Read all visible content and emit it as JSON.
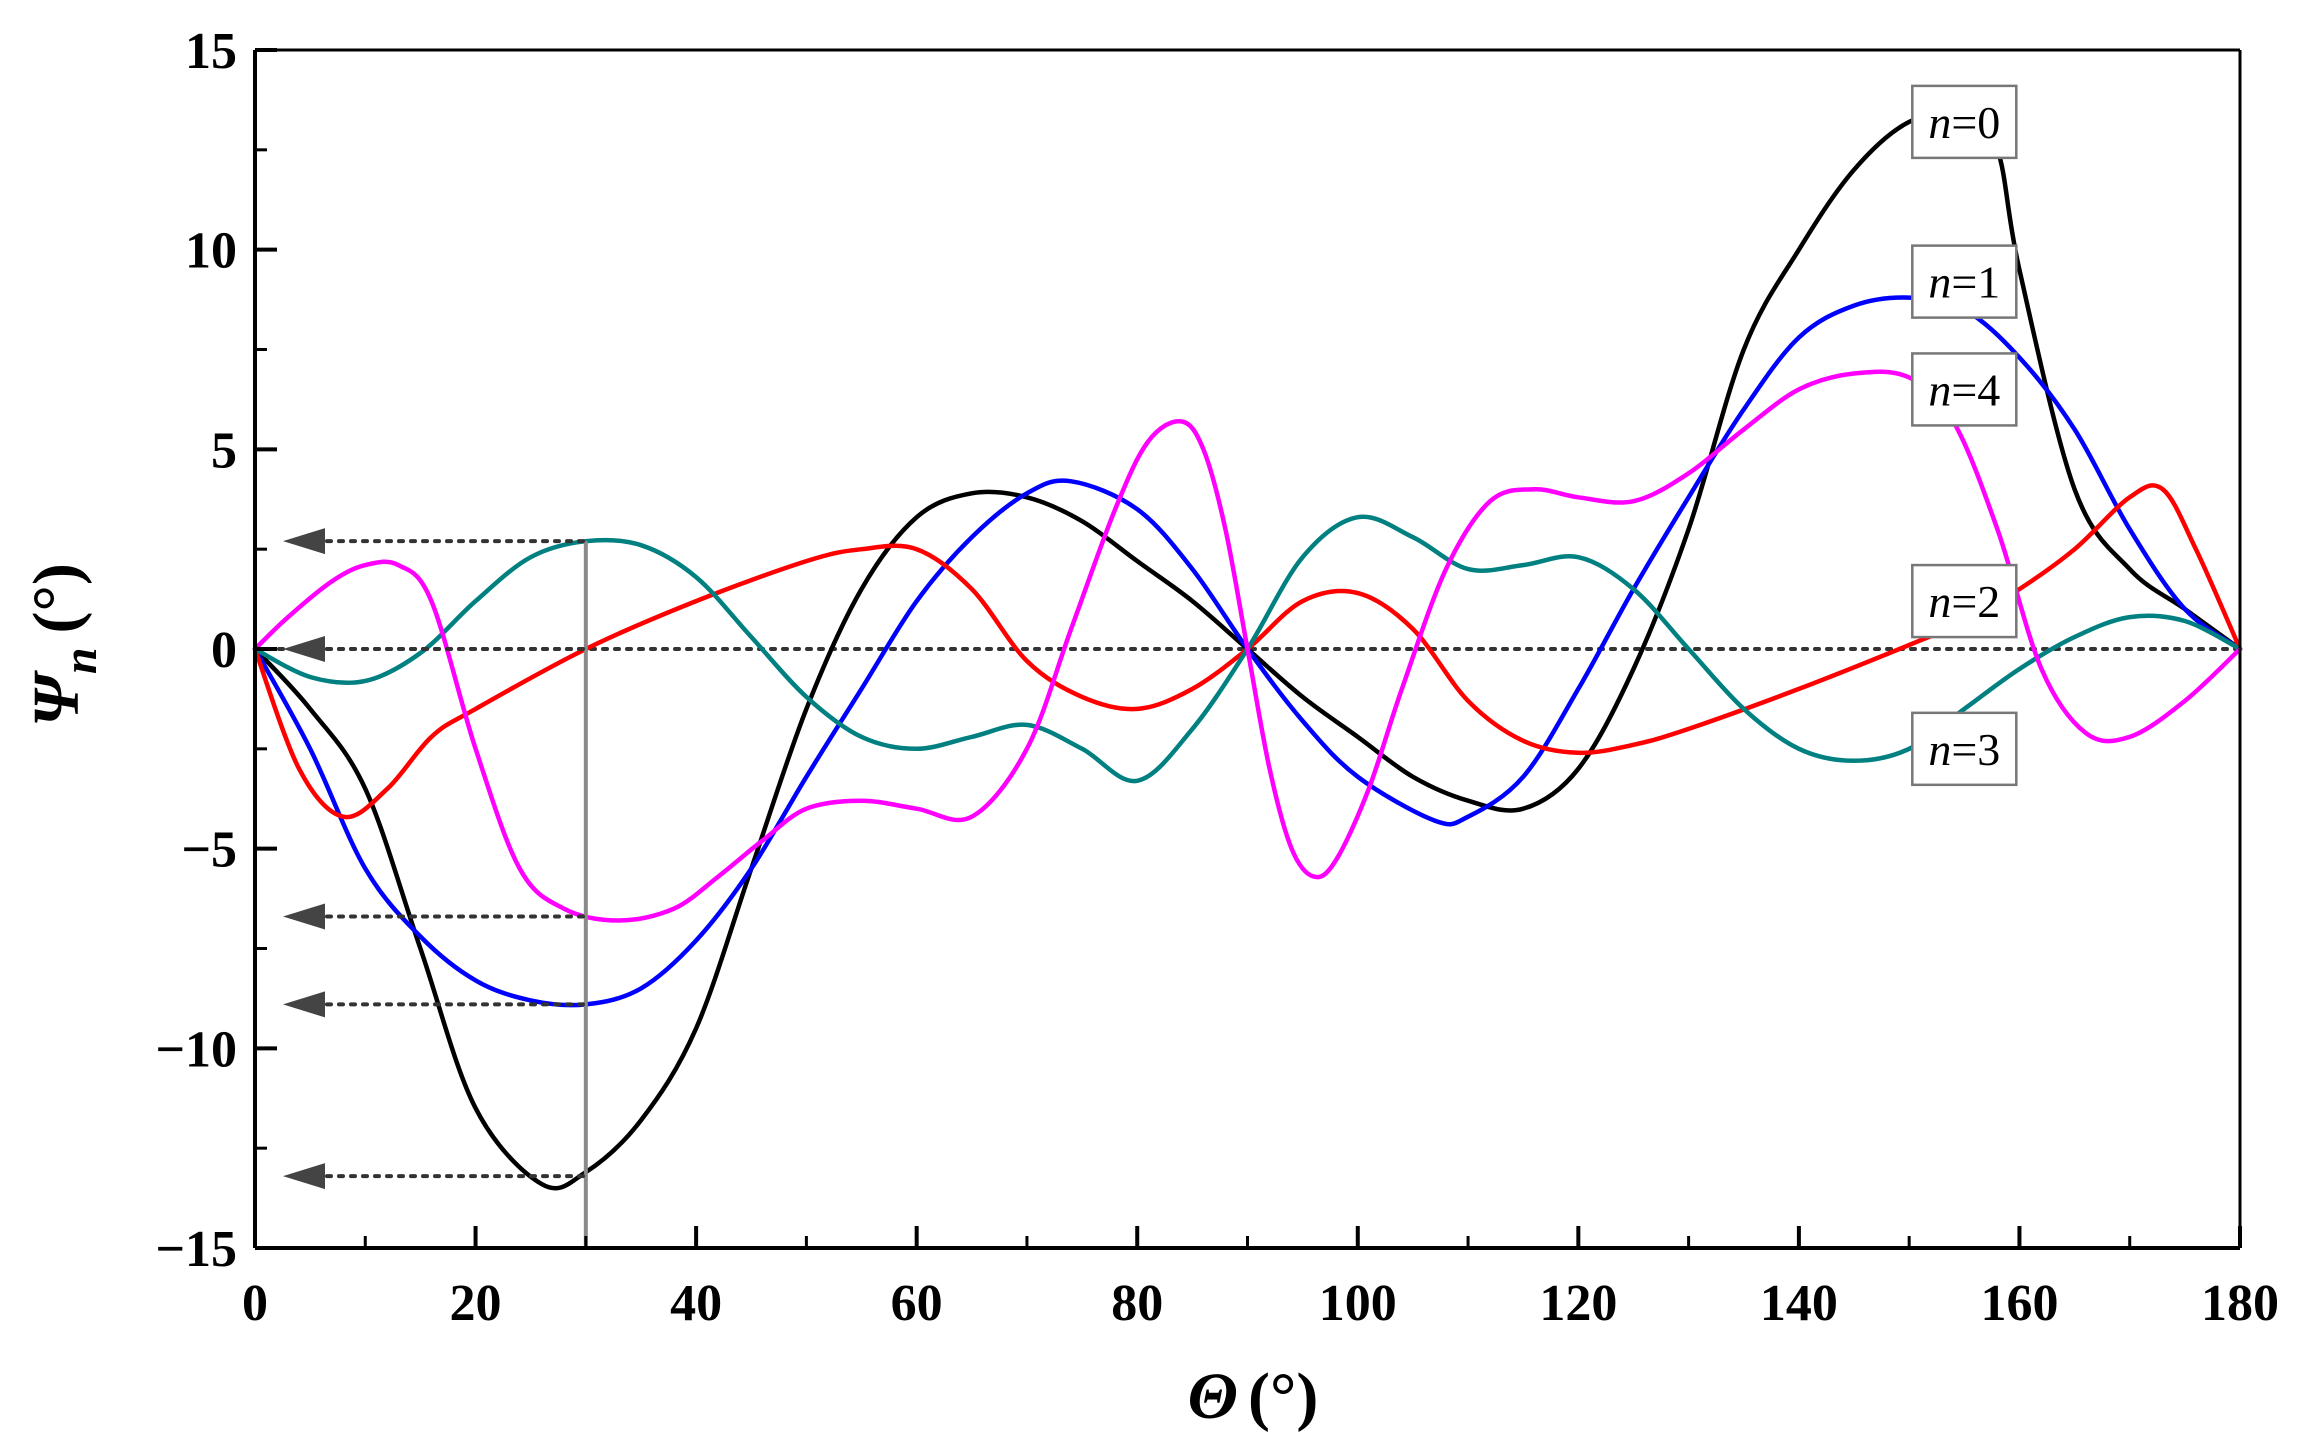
{
  "chart_data": {
    "type": "line",
    "xlabel": {
      "symbol": "Θ",
      "unit": "(°)"
    },
    "ylabel": {
      "symbol": "Ψ",
      "subscript": "n",
      "unit": "(°)"
    },
    "xlim": [
      0,
      180
    ],
    "ylim": [
      -15,
      15
    ],
    "xticks": [
      0,
      20,
      40,
      60,
      80,
      100,
      120,
      140,
      160,
      180
    ],
    "yticks": [
      -15,
      -10,
      -5,
      0,
      5,
      10,
      15
    ],
    "xtick_labels": [
      "0",
      "20",
      "40",
      "60",
      "80",
      "100",
      "120",
      "140",
      "160",
      "180"
    ],
    "ytick_labels": [
      "−15",
      "−10",
      "−5",
      "0",
      "5",
      "10",
      "15"
    ],
    "series": [
      {
        "name": "n=0",
        "label_var": "n",
        "label_val": "=0",
        "color": "#000000",
        "x": [
          0,
          5,
          10,
          15,
          20,
          26,
          30,
          35,
          40,
          45,
          50,
          55,
          60,
          65,
          70,
          75,
          80,
          85,
          90,
          95,
          100,
          105,
          110,
          115,
          120,
          125,
          130,
          135,
          140,
          145,
          150,
          155,
          158,
          160,
          165,
          170,
          175,
          180
        ],
        "y": [
          0,
          -1.5,
          -3.5,
          -7.5,
          -11.5,
          -13.4,
          -13.1,
          -11.8,
          -9.5,
          -5.5,
          -1.5,
          1.5,
          3.3,
          3.9,
          3.8,
          3.2,
          2.2,
          1.2,
          0,
          -1.2,
          -2.2,
          -3.2,
          -3.8,
          -4.0,
          -3.0,
          -0.5,
          3.0,
          7.5,
          10.0,
          12.0,
          13.2,
          13.4,
          12.5,
          9.5,
          4.0,
          2.0,
          1.0,
          0
        ]
      },
      {
        "name": "n=1",
        "label_var": "n",
        "label_val": "=1",
        "color": "#0000ff",
        "x": [
          0,
          5,
          10,
          15,
          20,
          25,
          30,
          35,
          40,
          45,
          50,
          55,
          60,
          65,
          70,
          74,
          80,
          85,
          90,
          95,
          100,
          107,
          110,
          115,
          120,
          125,
          130,
          135,
          140,
          145,
          150,
          155,
          160,
          165,
          170,
          175,
          180
        ],
        "y": [
          0,
          -2.5,
          -5.5,
          -7.2,
          -8.3,
          -8.8,
          -8.9,
          -8.5,
          -7.3,
          -5.5,
          -3.2,
          -1.0,
          1.2,
          2.8,
          3.9,
          4.2,
          3.5,
          2.0,
          0,
          -1.8,
          -3.2,
          -4.3,
          -4.2,
          -3.2,
          -1.0,
          1.5,
          3.8,
          6.0,
          7.8,
          8.6,
          8.8,
          8.5,
          7.3,
          5.5,
          3.0,
          1.0,
          0
        ]
      },
      {
        "name": "n=2",
        "label_var": "n",
        "label_val": "=2",
        "color": "#ff0000",
        "x": [
          0,
          4,
          8,
          12,
          16,
          20,
          30,
          40,
          50,
          55,
          60,
          65,
          70,
          75,
          80,
          85,
          90,
          95,
          100,
          105,
          110,
          115,
          120,
          125,
          130,
          140,
          150,
          155,
          160,
          165,
          170,
          173,
          176,
          180
        ],
        "y": [
          0,
          -3.0,
          -4.2,
          -3.5,
          -2.2,
          -1.5,
          0,
          1.2,
          2.2,
          2.5,
          2.5,
          1.5,
          -0.3,
          -1.2,
          -1.5,
          -1.0,
          0,
          1.2,
          1.4,
          0.5,
          -1.3,
          -2.3,
          -2.6,
          -2.4,
          -2.0,
          -1.0,
          0.1,
          0.7,
          1.5,
          2.5,
          3.8,
          4.0,
          2.5,
          0
        ]
      },
      {
        "name": "n=3",
        "label_var": "n",
        "label_val": "=3",
        "color": "#008080",
        "x": [
          0,
          5,
          10,
          15,
          20,
          25,
          30,
          35,
          40,
          45,
          50,
          55,
          60,
          65,
          70,
          75,
          80,
          85,
          90,
          95,
          100,
          105,
          110,
          115,
          120,
          125,
          130,
          135,
          140,
          145,
          150,
          155,
          160,
          165,
          170,
          175,
          180
        ],
        "y": [
          0,
          -0.7,
          -0.8,
          -0.1,
          1.2,
          2.3,
          2.7,
          2.6,
          1.8,
          0.3,
          -1.2,
          -2.2,
          -2.5,
          -2.2,
          -1.9,
          -2.5,
          -3.3,
          -2.0,
          0,
          2.3,
          3.3,
          2.8,
          2.0,
          2.1,
          2.3,
          1.5,
          0,
          -1.5,
          -2.5,
          -2.8,
          -2.5,
          -1.5,
          -0.5,
          0.3,
          0.8,
          0.7,
          0
        ]
      },
      {
        "name": "n=4",
        "label_var": "n",
        "label_val": "=4",
        "color": "#ff00ff",
        "x": [
          0,
          3,
          7,
          10,
          13,
          16,
          20,
          24,
          28,
          33,
          38,
          42,
          46,
          50,
          55,
          60,
          65,
          70,
          74,
          78,
          81,
          84,
          86,
          88,
          90,
          92,
          94,
          96,
          98,
          101,
          104,
          108,
          112,
          116,
          120,
          125,
          130,
          135,
          140,
          145,
          150,
          154,
          158,
          162,
          166,
          170,
          175,
          180
        ],
        "y": [
          0,
          0.8,
          1.7,
          2.1,
          2.1,
          1.2,
          -2.5,
          -5.5,
          -6.5,
          -6.8,
          -6.5,
          -5.7,
          -4.8,
          -4.0,
          -3.8,
          -4.0,
          -4.2,
          -2.5,
          0.5,
          3.5,
          5.2,
          5.7,
          5.0,
          3.0,
          0,
          -3.0,
          -5.0,
          -5.7,
          -5.3,
          -3.5,
          -1.0,
          2.0,
          3.7,
          4.0,
          3.8,
          3.7,
          4.4,
          5.5,
          6.5,
          6.9,
          6.8,
          5.7,
          3.0,
          -0.5,
          -2.1,
          -2.2,
          -1.3,
          0
        ]
      }
    ],
    "reference_line": {
      "y": 0,
      "style": "dotted"
    },
    "marker_line": {
      "x": 30
    },
    "arrows": [
      {
        "y": 2.7
      },
      {
        "y": 0
      },
      {
        "y": -6.7
      },
      {
        "y": -8.9
      },
      {
        "y": -13.2
      }
    ],
    "annotations": [
      {
        "series": "n=0",
        "var": "n",
        "val": "=0",
        "x": 155,
        "y": 13.2
      },
      {
        "series": "n=1",
        "var": "n",
        "val": "=1",
        "x": 155,
        "y": 9.2
      },
      {
        "series": "n=4",
        "var": "n",
        "val": "=4",
        "x": 155,
        "y": 6.5
      },
      {
        "series": "n=2",
        "var": "n",
        "val": "=2",
        "x": 155,
        "y": 1.2
      },
      {
        "series": "n=3",
        "var": "n",
        "val": "=3",
        "x": 155,
        "y": -2.5
      }
    ]
  }
}
